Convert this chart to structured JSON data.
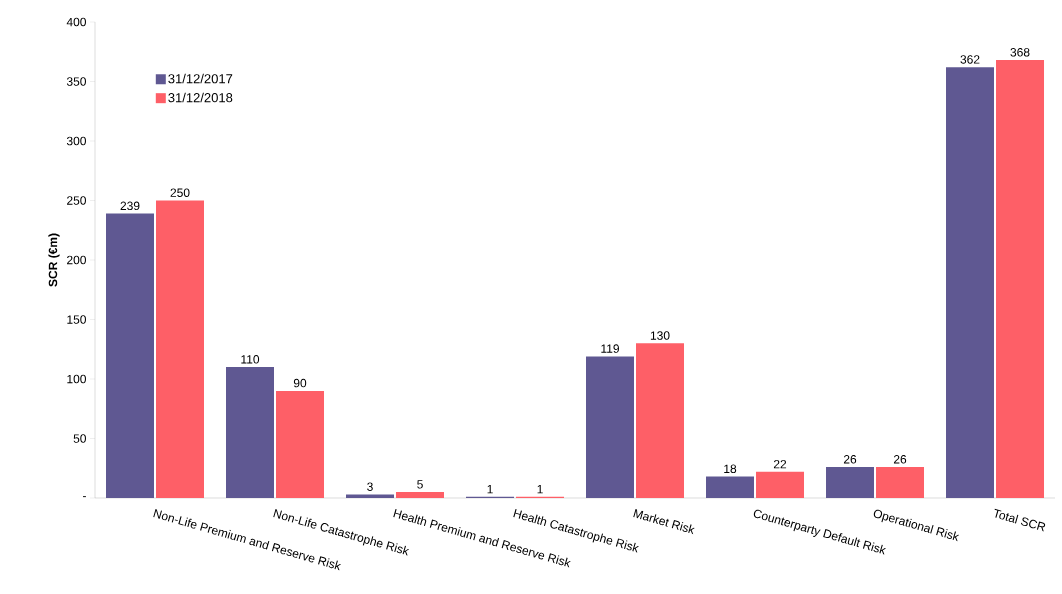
{
  "chart_data": {
    "type": "bar",
    "ylabel": "SCR (€m)",
    "categories": [
      "Non-Life Premium and Reserve Risk",
      "Non-Life Catastrophe Risk",
      "Health Premium and Reserve Risk",
      "Health Catastrophe Risk",
      "Market Risk",
      "Counterparty Default Risk",
      "Operational Risk",
      "Total SCR"
    ],
    "series": [
      {
        "name": "31/12/2017",
        "color": "#5f5892",
        "values": [
          239,
          110,
          3,
          1,
          119,
          18,
          26,
          362
        ]
      },
      {
        "name": "31/12/2018",
        "color": "#fe5f67",
        "values": [
          250,
          90,
          5,
          1,
          130,
          22,
          26,
          368
        ]
      }
    ],
    "ylim": [
      0,
      400
    ],
    "yticks": [
      {
        "value": 0,
        "label": "-"
      },
      50,
      100,
      150,
      200,
      250,
      300,
      350,
      400
    ],
    "data_labels": true,
    "grid": false,
    "legend": "top left"
  }
}
